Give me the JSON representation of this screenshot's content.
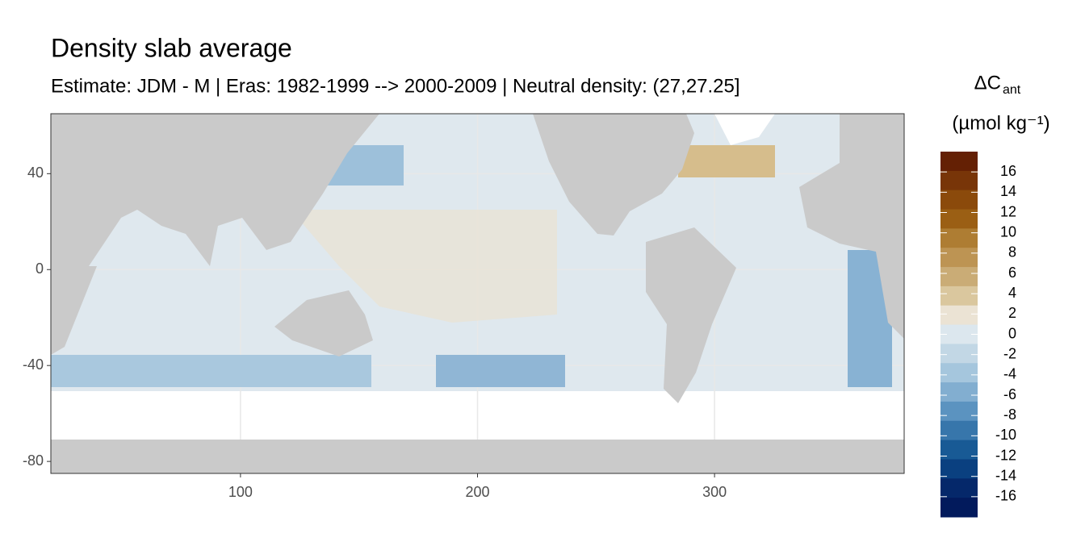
{
  "chart_data": {
    "type": "raster-map",
    "title": "Density slab average",
    "subtitle": "Estimate: JDM - M | Eras: 1982-1999 --> 2000-2009 | Neutral density: (27,27.25]",
    "xlim": [
      20,
      380
    ],
    "xticks": [
      100,
      200,
      300
    ],
    "ylim": [
      -85,
      65
    ],
    "yticks": [
      40,
      0,
      -40,
      -80
    ],
    "grid": true,
    "legend": {
      "title": "ΔC",
      "title_subscript": "ant",
      "unit": "(µmol kg⁻¹)",
      "limits": [
        -18,
        18
      ],
      "breaks": [
        16,
        14,
        12,
        10,
        8,
        6,
        4,
        2,
        0,
        -2,
        -4,
        -6,
        -8,
        -10,
        -12,
        -14,
        -16
      ],
      "colors": [
        "#642004",
        "#783508",
        "#8b4a0b",
        "#9b5f14",
        "#ae7d33",
        "#bd9453",
        "#caac76",
        "#dac79e",
        "#ebe3d4",
        "#dce7ee",
        "#c2d7e5",
        "#a5c6dd",
        "#82aed0",
        "#5b93c0",
        "#3776ab",
        "#185a95",
        "#0a4080",
        "#05286a",
        "#021a5c"
      ]
    }
  }
}
